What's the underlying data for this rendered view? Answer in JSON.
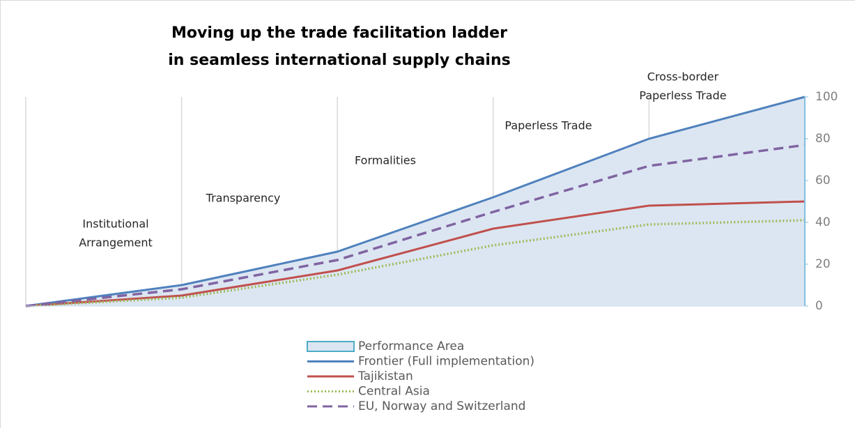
{
  "chart_data": {
    "type": "line",
    "title": [
      "Moving up the trade facilitation ladder",
      "in seamless international supply chains"
    ],
    "categories": [
      null,
      null,
      null,
      null,
      null,
      null
    ],
    "annotations": [
      [
        "Institutional",
        "Arrangement"
      ],
      [
        "Transparency"
      ],
      [
        "Formalities"
      ],
      [
        "Paperless Trade"
      ],
      [
        "Cross-border",
        "Paperless Trade"
      ]
    ],
    "series": [
      {
        "name": "Performance Area",
        "style": "area",
        "color": "#4bacc6",
        "fill": "#dce6f2",
        "values": [
          0,
          10,
          26,
          52,
          80,
          100
        ]
      },
      {
        "name": "Frontier (Full implementation)",
        "style": "solid",
        "color": "#4f81bd",
        "values": [
          0,
          10,
          26,
          52,
          80,
          100
        ]
      },
      {
        "name": "Tajikistan",
        "style": "solid",
        "color": "#c0504d",
        "values": [
          0,
          5,
          17,
          37,
          48,
          50
        ]
      },
      {
        "name": "Central Asia",
        "style": "dotted",
        "color": "#9bbb59",
        "values": [
          0,
          4,
          15,
          29,
          39,
          41
        ]
      },
      {
        "name": "EU, Norway and Switzerland",
        "style": "dashed",
        "color": "#8064a2",
        "values": [
          0,
          8,
          22,
          45,
          67,
          77
        ]
      }
    ],
    "ylim": [
      0,
      100
    ],
    "yticks": [
      0,
      20,
      40,
      60,
      80,
      100
    ],
    "y_axis_side": "right",
    "legend": "bottom"
  }
}
